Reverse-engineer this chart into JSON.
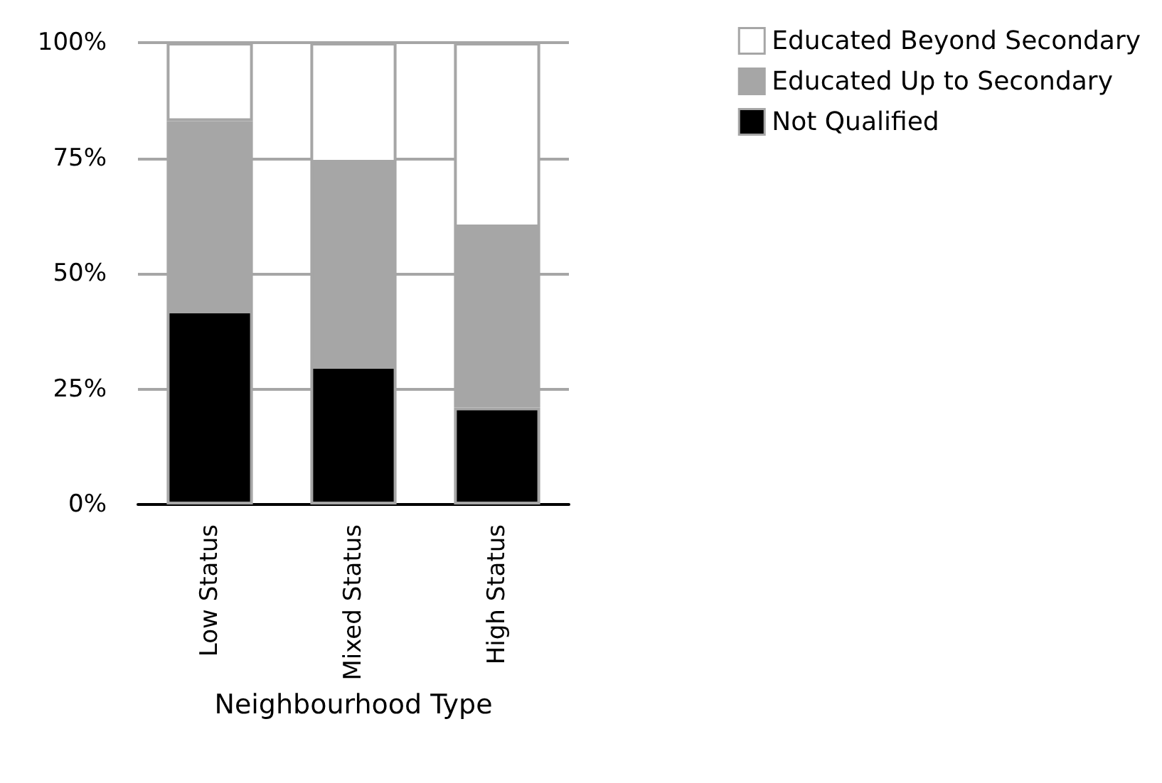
{
  "chart_data": {
    "type": "bar",
    "stacked": true,
    "xlabel": "Neighbourhood Type",
    "categories": [
      "Low Status",
      "Mixed Status",
      "High Status"
    ],
    "series": [
      {
        "name": "Not Qualified",
        "color": "#000000",
        "values": [
          42,
          30,
          21
        ]
      },
      {
        "name": "Educated Up to Secondary",
        "color": "#a6a6a6",
        "values": [
          41,
          44,
          39
        ]
      },
      {
        "name": "Educated Beyond Secondary",
        "color": "#ffffff",
        "values": [
          17,
          26,
          40
        ]
      }
    ],
    "ylim": [
      0,
      100
    ],
    "yticks": [
      {
        "value": 0,
        "label": "0%"
      },
      {
        "value": 25,
        "label": "25%"
      },
      {
        "value": 50,
        "label": "50%"
      },
      {
        "value": 75,
        "label": "75%"
      },
      {
        "value": 100,
        "label": "100%"
      }
    ],
    "grid": "y",
    "legend": "top right"
  }
}
